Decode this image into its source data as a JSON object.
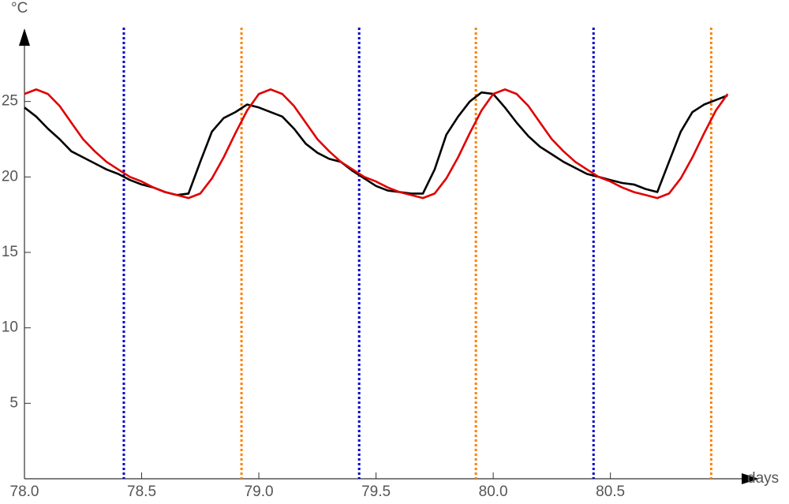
{
  "chart_data": {
    "type": "line",
    "xlabel": "days",
    "ylabel": "°C",
    "x": [
      78.0,
      78.05,
      78.1,
      78.15,
      78.2,
      78.25,
      78.3,
      78.35,
      78.4,
      78.45,
      78.5,
      78.55,
      78.6,
      78.65,
      78.7,
      78.75,
      78.8,
      78.85,
      78.9,
      78.95,
      79.0,
      79.05,
      79.1,
      79.15,
      79.2,
      79.25,
      79.3,
      79.35,
      79.4,
      79.45,
      79.5,
      79.55,
      79.6,
      79.65,
      79.7,
      79.75,
      79.8,
      79.85,
      79.9,
      79.95,
      80.0,
      80.05,
      80.1,
      80.15,
      80.2,
      80.25,
      80.3,
      80.35,
      80.4,
      80.45,
      80.5,
      80.55,
      80.6,
      80.65,
      80.7,
      80.75,
      80.8,
      80.85,
      80.9,
      80.95,
      81.0
    ],
    "series": [
      {
        "color": "#000000",
        "values": [
          24.6,
          24.0,
          23.2,
          22.5,
          21.7,
          21.3,
          20.9,
          20.5,
          20.2,
          19.8,
          19.5,
          19.3,
          19.0,
          18.8,
          18.9,
          21.0,
          23.0,
          23.9,
          24.3,
          24.8,
          24.6,
          24.3,
          24.0,
          23.2,
          22.2,
          21.6,
          21.2,
          21.0,
          20.4,
          19.9,
          19.4,
          19.1,
          19.0,
          18.9,
          18.9,
          20.5,
          22.8,
          24.0,
          25.0,
          25.6,
          25.5,
          24.6,
          23.6,
          22.7,
          22.0,
          21.5,
          21.0,
          20.6,
          20.2,
          20.0,
          19.8,
          19.6,
          19.5,
          19.2,
          19.0,
          21.0,
          23.0,
          24.3,
          24.8,
          25.1,
          25.4
        ]
      },
      {
        "color": "#e00000",
        "values": [
          25.5,
          25.8,
          25.5,
          24.7,
          23.6,
          22.5,
          21.7,
          21.0,
          20.5,
          20.0,
          19.7,
          19.3,
          19.0,
          18.8,
          18.6,
          18.9,
          19.9,
          21.3,
          22.9,
          24.4,
          25.5,
          25.8,
          25.5,
          24.7,
          23.6,
          22.5,
          21.7,
          21.0,
          20.5,
          20.0,
          19.7,
          19.3,
          19.0,
          18.8,
          18.6,
          18.9,
          19.9,
          21.3,
          22.9,
          24.4,
          25.5,
          25.8,
          25.5,
          24.7,
          23.6,
          22.5,
          21.7,
          21.0,
          20.5,
          20.0,
          19.7,
          19.3,
          19.0,
          18.8,
          18.6,
          18.9,
          19.9,
          21.3,
          22.9,
          24.4,
          25.5
        ]
      }
    ],
    "vertical_lines": [
      {
        "color": "#0000cc",
        "x": [
          78.424,
          79.428,
          80.428
        ]
      },
      {
        "color": "#ff8000",
        "x": [
          78.926,
          79.926,
          80.93
        ]
      }
    ],
    "xlim": [
      78,
      81.06
    ],
    "ylim": [
      0,
      30
    ],
    "xticks": [
      {
        "value": 78,
        "label": "78.0"
      },
      78.5,
      {
        "value": 79,
        "label": "79.0"
      },
      79.5,
      {
        "value": 80,
        "label": "80.0"
      },
      80.5
    ],
    "yticks": [
      5,
      10,
      15,
      20,
      25
    ]
  }
}
